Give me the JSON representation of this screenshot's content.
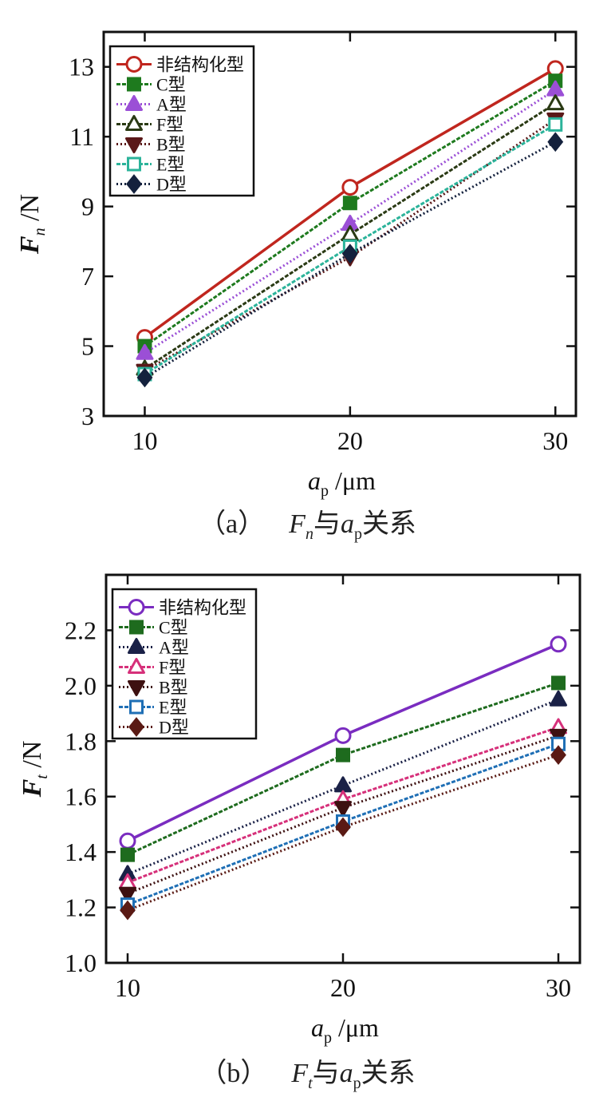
{
  "chart_data": [
    {
      "type": "line",
      "title": "",
      "xlabel_base": "a",
      "xlabel_sub": "p",
      "xlabel_unit": " /μm",
      "ylabel_base": "F",
      "ylabel_sub": "n",
      "ylabel_unit": " /N",
      "x": [
        10,
        20,
        30
      ],
      "xlim": [
        8,
        31
      ],
      "ylim": [
        3,
        14
      ],
      "yticks": [
        3,
        5,
        7,
        9,
        11,
        13
      ],
      "grid": false,
      "legend_position": "top-left",
      "series": [
        {
          "name": "非结构化型",
          "values": [
            5.25,
            9.55,
            12.95
          ],
          "color": "#c0261e",
          "marker": "circle-open"
        },
        {
          "name": "C型",
          "values": [
            5.0,
            9.1,
            12.6
          ],
          "color": "#1e7a1e",
          "marker": "square-filled"
        },
        {
          "name": "A型",
          "values": [
            4.8,
            8.5,
            12.35
          ],
          "color": "#9b4fd6",
          "marker": "triangle-up-filled"
        },
        {
          "name": "F型",
          "values": [
            4.35,
            8.2,
            11.95
          ],
          "color": "#2a3a14",
          "marker": "triangle-up-open"
        },
        {
          "name": "B型",
          "values": [
            4.3,
            7.55,
            11.5
          ],
          "color": "#5a1818",
          "marker": "triangle-down-filled"
        },
        {
          "name": "E型",
          "values": [
            4.2,
            7.85,
            11.35
          ],
          "color": "#2bb39a",
          "marker": "square-open"
        },
        {
          "name": "D型",
          "values": [
            4.1,
            7.65,
            10.85
          ],
          "color": "#14213d",
          "marker": "diamond-filled"
        }
      ]
    },
    {
      "type": "line",
      "title": "",
      "xlabel_base": "a",
      "xlabel_sub": "p",
      "xlabel_unit": " /μm",
      "ylabel_base": "F",
      "ylabel_sub": "t",
      "ylabel_unit": " /N",
      "x": [
        10,
        20,
        30
      ],
      "xlim": [
        9,
        31
      ],
      "ylim": [
        1.0,
        2.4
      ],
      "yticks": [
        1.0,
        1.2,
        1.4,
        1.6,
        1.8,
        2.0,
        2.2
      ],
      "grid": false,
      "legend_position": "top-left",
      "series": [
        {
          "name": "非结构化型",
          "values": [
            1.44,
            1.82,
            2.15
          ],
          "color": "#7a2cc0",
          "marker": "circle-open"
        },
        {
          "name": "C型",
          "values": [
            1.39,
            1.75,
            2.01
          ],
          "color": "#1e6b1e",
          "marker": "square-filled"
        },
        {
          "name": "A型",
          "values": [
            1.32,
            1.64,
            1.95
          ],
          "color": "#1a2147",
          "marker": "triangle-up-filled"
        },
        {
          "name": "F型",
          "values": [
            1.29,
            1.59,
            1.85
          ],
          "color": "#d6307a",
          "marker": "triangle-up-open"
        },
        {
          "name": "B型",
          "values": [
            1.25,
            1.56,
            1.82
          ],
          "color": "#3d1010",
          "marker": "triangle-down-filled"
        },
        {
          "name": "E型",
          "values": [
            1.21,
            1.51,
            1.79
          ],
          "color": "#1f6fb5",
          "marker": "square-open"
        },
        {
          "name": "D型",
          "values": [
            1.19,
            1.49,
            1.75
          ],
          "color": "#5a1a14",
          "marker": "diamond-filled"
        }
      ]
    }
  ],
  "captions": {
    "a": {
      "label": "（a）",
      "var": "F",
      "var_sub": "n",
      "mid": "与",
      "var2": "a",
      "var2_sub": "p",
      "tail": "关系"
    },
    "b": {
      "label": "（b）",
      "var": "F",
      "var_sub": "t",
      "mid": "与",
      "var2": "a",
      "var2_sub": "p",
      "tail": "关系"
    }
  }
}
